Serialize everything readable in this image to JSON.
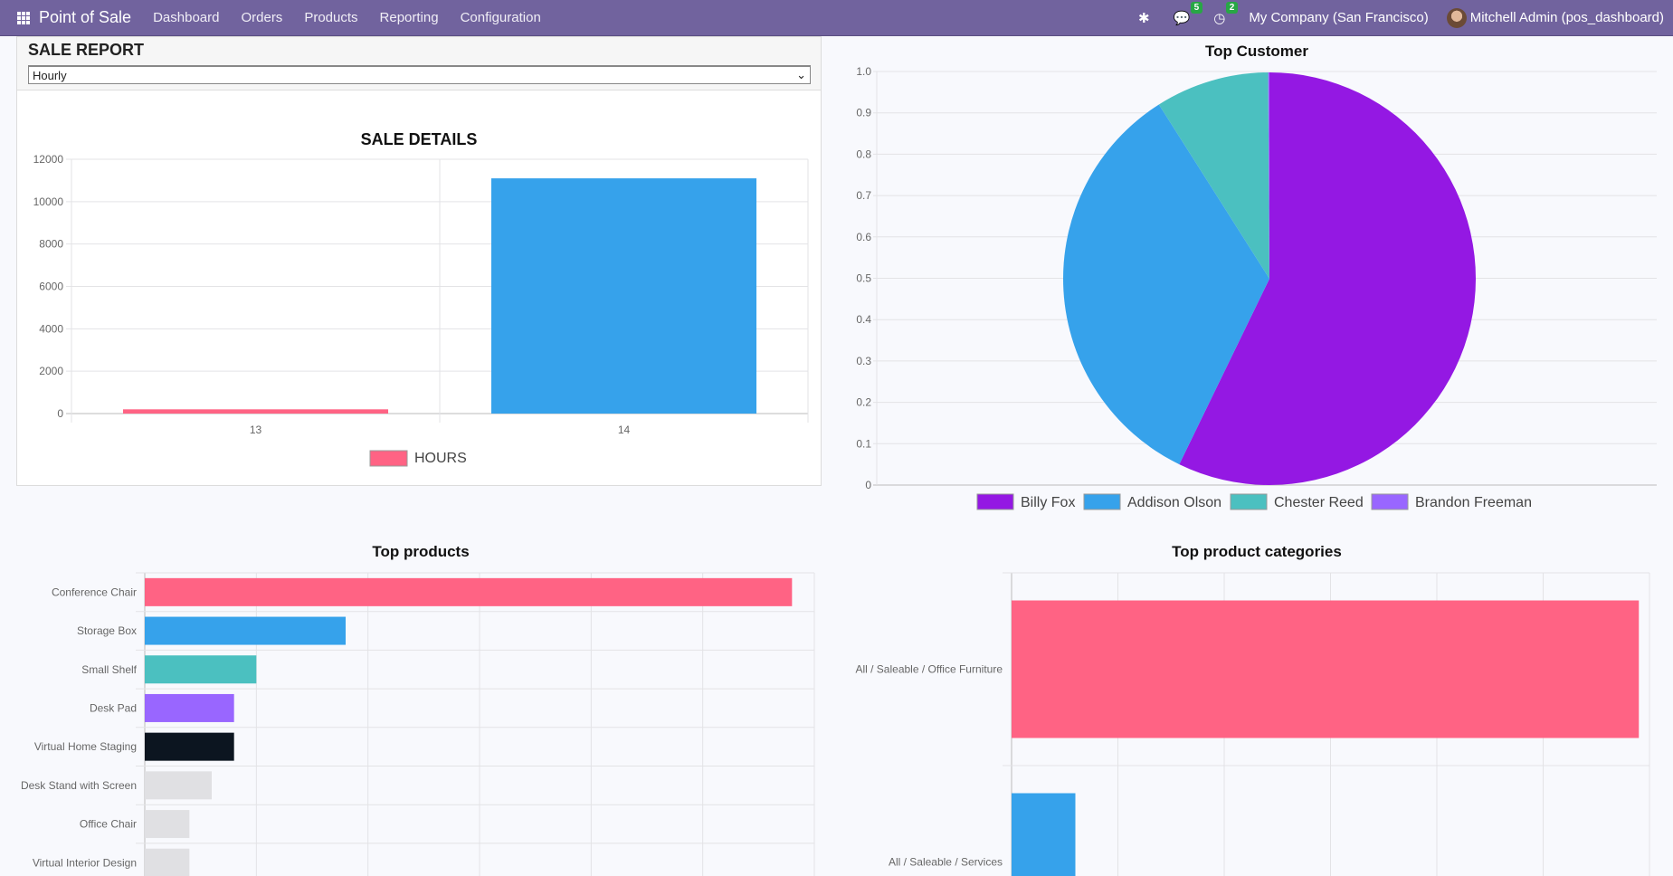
{
  "navbar": {
    "app_title": "Point of Sale",
    "menu": [
      "Dashboard",
      "Orders",
      "Products",
      "Reporting",
      "Configuration"
    ],
    "messages_count": "5",
    "activities_count": "2",
    "company": "My Company (San Francisco)",
    "user": "Mitchell Admin (pos_dashboard)",
    "icons": [
      "apps-grid-icon",
      "bug-icon",
      "chat-icon",
      "clock-icon",
      "avatar"
    ]
  },
  "sale_report": {
    "title": "SALE REPORT",
    "period_selected": "Hourly"
  },
  "colors": {
    "navbar": "#71639e",
    "pink": "#ff6384",
    "blue": "#36a2eb",
    "teal": "#4bc0c0",
    "purple": "#9966ff",
    "dark": "#0c1520",
    "grey": "#e0e0e3",
    "violet": "#9418e3"
  },
  "chart_data": [
    {
      "type": "bar",
      "title": "SALE DETAILS",
      "categories": [
        "13",
        "14"
      ],
      "values": [
        200,
        11100
      ],
      "colors": [
        "#ff6384",
        "#36a2eb"
      ],
      "legend": [
        "HOURS"
      ],
      "legend_placement": "bottom",
      "ylim": [
        0,
        12000
      ],
      "yticks": [
        0,
        2000,
        4000,
        6000,
        8000,
        10000,
        12000
      ],
      "grid": true
    },
    {
      "type": "pie",
      "title": "Top Customer",
      "categories": [
        "Billy Fox",
        "Addison Olson",
        "Chester Reed",
        "Brandon Freeman"
      ],
      "values": [
        57.2,
        33.8,
        8.9,
        0.1
      ],
      "colors": [
        "#9418e3",
        "#36a2eb",
        "#4bc0c0",
        "#9966ff"
      ],
      "yticks": [
        "0",
        "0.1",
        "0.2",
        "0.3",
        "0.4",
        "0.5",
        "0.6",
        "0.7",
        "0.8",
        "0.9",
        "1.0"
      ],
      "legend_placement": "bottom",
      "grid": true
    },
    {
      "type": "bar",
      "orientation": "horizontal",
      "title": "Top products",
      "categories": [
        "Conference Chair",
        "Storage Box",
        "Small Shelf",
        "Desk Pad",
        "Virtual Home Staging",
        "Desk Stand with Screen",
        "Office Chair",
        "Virtual Interior Design"
      ],
      "values": [
        29,
        9,
        5,
        4,
        4,
        3,
        2,
        2
      ],
      "colors": [
        "#ff6384",
        "#36a2eb",
        "#4bc0c0",
        "#9966ff",
        "#0c1520",
        "#e0e0e3",
        "#e0e0e3",
        "#e0e0e3"
      ],
      "xlim": [
        0,
        30
      ],
      "grid": true
    },
    {
      "type": "bar",
      "orientation": "horizontal",
      "title": "Top product categories",
      "categories": [
        "All / Saleable / Office Furniture",
        "All / Saleable / Services"
      ],
      "values": [
        59,
        6
      ],
      "colors": [
        "#ff6384",
        "#36a2eb"
      ],
      "xlim": [
        0,
        60
      ],
      "grid": true
    }
  ]
}
